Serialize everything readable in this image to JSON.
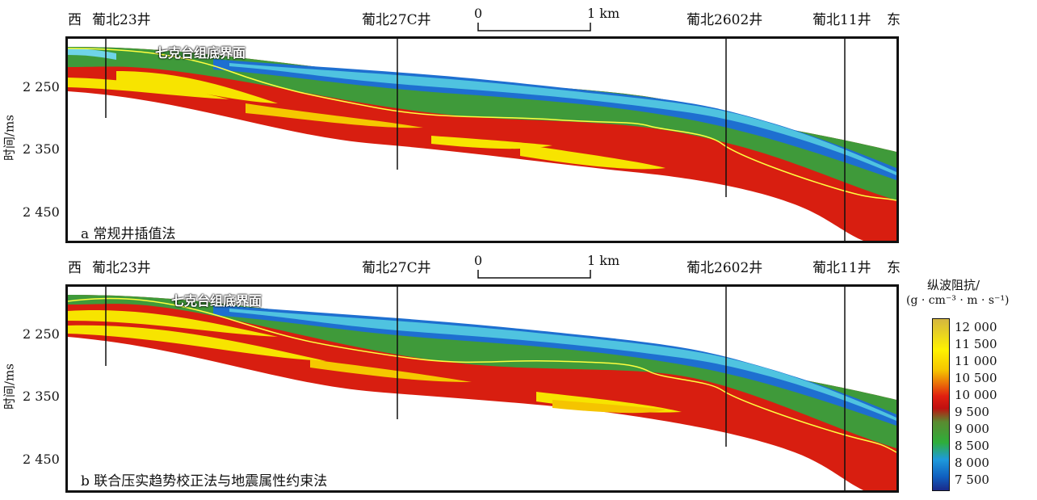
{
  "panels": [
    {
      "west": "西",
      "east": "东",
      "wells": [
        "葡北23井",
        "葡北27C井",
        "葡北2602井",
        "葡北11井"
      ],
      "scale_start": "0",
      "scale_end": "1 km",
      "horizon_label": "七克台组底界面",
      "caption": "a 常规井插值法",
      "ylabel": "时间/ms",
      "yticks": [
        "2 250",
        "2 350",
        "2 450"
      ]
    },
    {
      "west": "西",
      "east": "东",
      "wells": [
        "葡北23井",
        "葡北27C井",
        "葡北2602井",
        "葡北11井"
      ],
      "scale_start": "0",
      "scale_end": "1 km",
      "horizon_label": "七克台组底界面",
      "caption": "b 联合压实趋势校正法与地震属性约束法",
      "ylabel": "时间/ms",
      "yticks": [
        "2 250",
        "2 350",
        "2 450"
      ]
    }
  ],
  "legend": {
    "title_line1": "纵波阻抗/",
    "title_line2": "(g · cm⁻³ · m · s⁻¹)",
    "ticks": [
      "12 000",
      "11 500",
      "11 000",
      "10 500",
      "10 000",
      "9 500",
      "9 000",
      "8 500",
      "8 000",
      "7 500"
    ]
  },
  "colors": {
    "green": "#3f9a3a",
    "red": "#d81e10",
    "yellow": "#f7e400",
    "blue": "#1e6fd0",
    "cyan": "#4fc3e0",
    "horizon": "#ffff40"
  }
}
